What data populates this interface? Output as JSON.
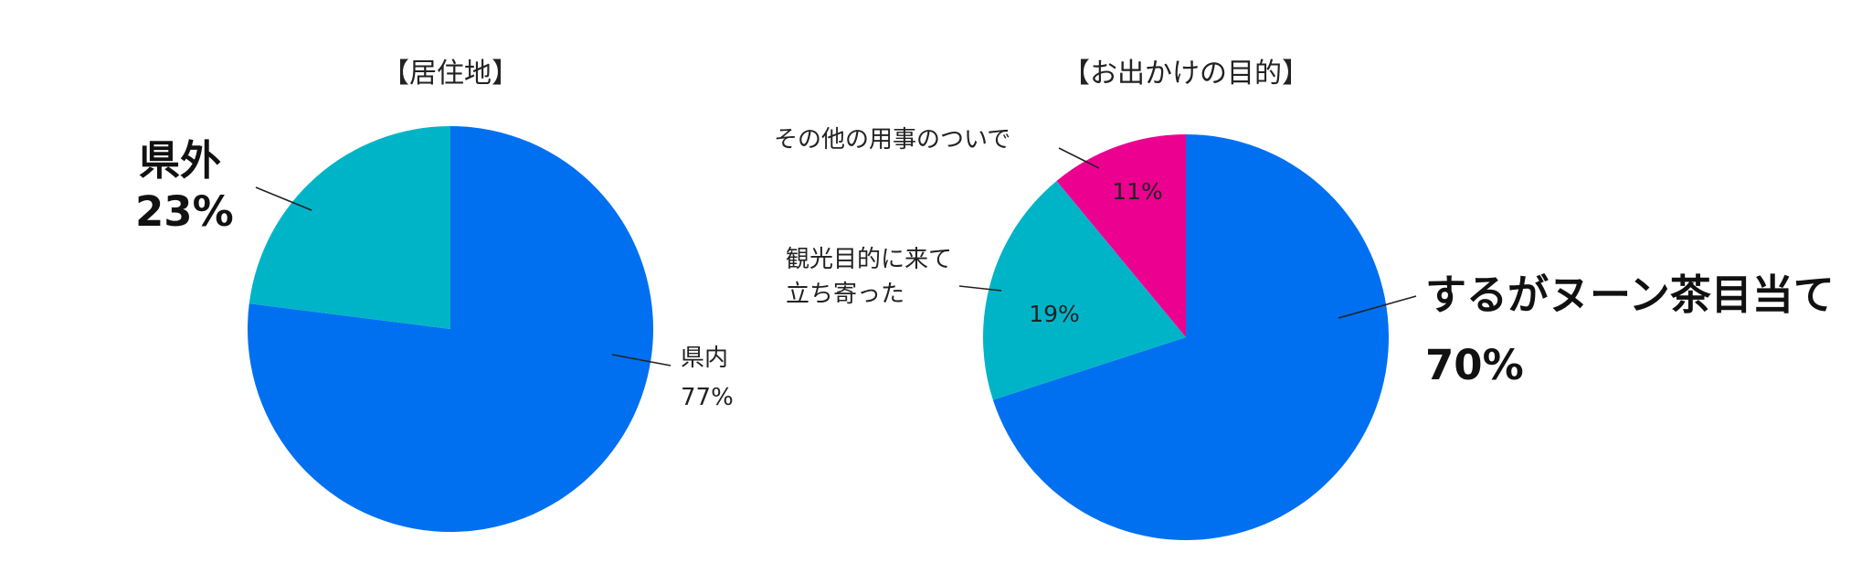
{
  "chart_data": [
    {
      "type": "pie",
      "title": "【居住地】",
      "slices": [
        {
          "label": "県内",
          "value": 77,
          "value_label": "77%",
          "color": "#0070F0"
        },
        {
          "label": "県外",
          "value": 23,
          "value_label": "23%",
          "color": "#00B4C8"
        }
      ]
    },
    {
      "type": "pie",
      "title": "【お出かけの目的】",
      "slices": [
        {
          "label": "するがヌーン茶目当て",
          "value": 70,
          "value_label": "70%",
          "color": "#0070F0"
        },
        {
          "label_lines": [
            "観光目的に来て",
            "立ち寄った"
          ],
          "value": 19,
          "value_label": "19%",
          "color": "#00B4C8"
        },
        {
          "label": "その他の用事のついで",
          "value": 11,
          "value_label": "11%",
          "color": "#EC0090"
        }
      ]
    }
  ]
}
